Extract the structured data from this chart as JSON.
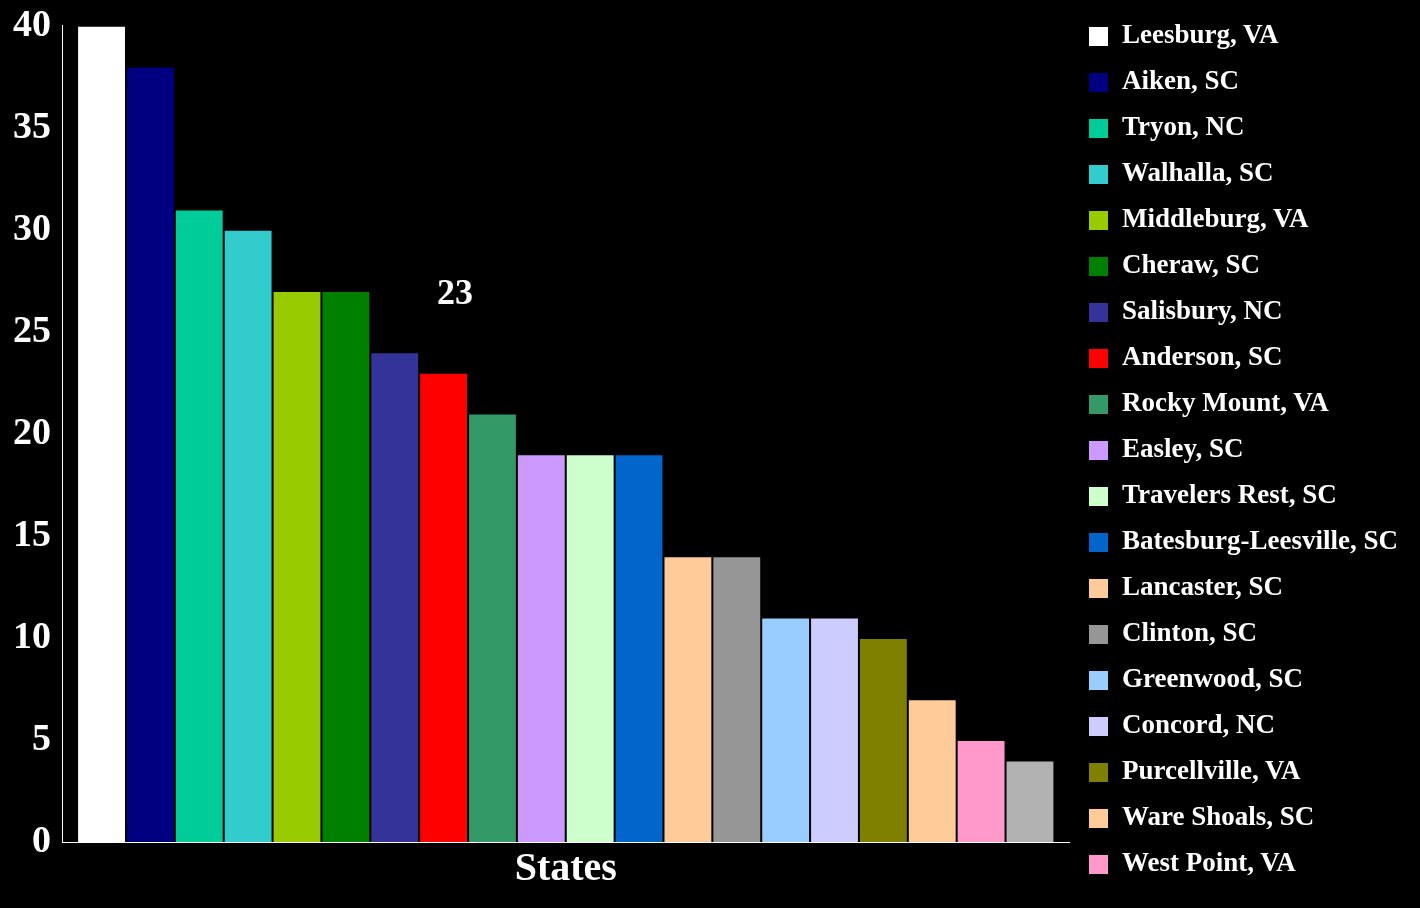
{
  "chart_data": {
    "type": "bar",
    "xlabel": "States",
    "categories": [
      null
    ],
    "series": [
      {
        "name": "Leesburg, VA",
        "color": "#ffffff",
        "values": [
          40
        ]
      },
      {
        "name": "Aiken, SC",
        "color": "#000080",
        "values": [
          38
        ]
      },
      {
        "name": "Tryon, NC",
        "color": "#00cc99",
        "values": [
          31
        ]
      },
      {
        "name": "Walhalla, SC",
        "color": "#33cccc",
        "values": [
          30
        ]
      },
      {
        "name": "Middleburg, VA",
        "color": "#99cc00",
        "values": [
          27
        ]
      },
      {
        "name": "Cheraw, SC",
        "color": "#008000",
        "values": [
          27
        ]
      },
      {
        "name": "Salisbury, NC",
        "color": "#333399",
        "values": [
          24
        ]
      },
      {
        "name": "Anderson, SC",
        "color": "#ff0000",
        "values": [
          23
        ]
      },
      {
        "name": "Rocky Mount, VA",
        "color": "#339966",
        "values": [
          21
        ]
      },
      {
        "name": "Easley, SC",
        "color": "#cc99ff",
        "values": [
          19
        ]
      },
      {
        "name": "Travelers Rest, SC",
        "color": "#ccffcc",
        "values": [
          19
        ]
      },
      {
        "name": "Batesburg-Leesville, SC",
        "color": "#0066cc",
        "values": [
          19
        ]
      },
      {
        "name": "Lancaster, SC",
        "color": "#ffcc99",
        "values": [
          14
        ]
      },
      {
        "name": "Clinton, SC",
        "color": "#969696",
        "values": [
          14
        ]
      },
      {
        "name": "Greenwood, SC",
        "color": "#99ccff",
        "values": [
          11
        ]
      },
      {
        "name": "Concord, NC",
        "color": "#ccccff",
        "values": [
          11
        ]
      },
      {
        "name": "Purcellville, VA",
        "color": "#808000",
        "values": [
          10
        ]
      },
      {
        "name": "Ware Shoals, SC",
        "color": "#ffcc99",
        "values": [
          7
        ]
      },
      {
        "name": "West Point, VA",
        "color": "#ff99cc",
        "values": [
          5
        ]
      },
      {
        "color": "#b2b2b2",
        "values": [
          4
        ]
      }
    ],
    "ylim": [
      0,
      40
    ],
    "yticks": [
      0,
      5,
      10,
      15,
      20,
      25,
      30,
      35,
      40
    ],
    "grid": false,
    "legend": "right",
    "annotations": [
      "23"
    ]
  }
}
